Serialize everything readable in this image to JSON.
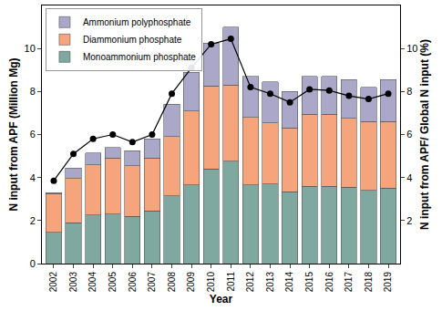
{
  "chart_data": {
    "type": "bar",
    "x_label": "Year",
    "y_label": "N input from APF (Million Mg)",
    "y2_label": "N input from APF/ Global N input (%)",
    "categories": [
      "2002",
      "2003",
      "2004",
      "2005",
      "2006",
      "2007",
      "2008",
      "2009",
      "2010",
      "2011",
      "2012",
      "2013",
      "2014",
      "2015",
      "2016",
      "2017",
      "2018",
      "2019"
    ],
    "stacked": true,
    "legend": "upper left",
    "grid": false,
    "ylim": [
      0,
      12
    ],
    "yticks": [
      0,
      2,
      4,
      6,
      8,
      10
    ],
    "y2lim": [
      0,
      12
    ],
    "y2ticks": [
      2,
      4,
      6,
      8,
      10
    ],
    "series": [
      {
        "name": "Monoammonium phosphate",
        "type": "bar",
        "color": "#7fa9a0",
        "values": [
          1.45,
          1.9,
          2.25,
          2.3,
          2.2,
          2.45,
          3.15,
          3.65,
          4.4,
          4.75,
          3.65,
          3.7,
          3.35,
          3.6,
          3.6,
          3.55,
          3.4,
          3.5
        ]
      },
      {
        "name": "Diammonium phosphate",
        "type": "bar",
        "color": "#f5a47c",
        "values": [
          1.8,
          2.05,
          2.35,
          2.6,
          2.35,
          2.45,
          2.75,
          3.45,
          3.85,
          3.55,
          3.15,
          2.85,
          2.95,
          3.35,
          3.35,
          3.2,
          3.2,
          3.1
        ]
      },
      {
        "name": "Ammonium polyphosphate",
        "type": "bar",
        "color": "#aaa7c9",
        "values": [
          0.05,
          0.5,
          0.55,
          0.5,
          0.7,
          0.9,
          1.5,
          1.8,
          2.0,
          2.7,
          1.9,
          1.9,
          1.7,
          1.75,
          1.75,
          1.8,
          1.6,
          1.95
        ]
      },
      {
        "type": "line",
        "axis": "y2",
        "color": "#000000",
        "marker": "circle",
        "line_style": "solid",
        "values": [
          3.85,
          5.1,
          5.8,
          6.0,
          5.65,
          6.0,
          7.9,
          9.1,
          10.2,
          10.45,
          8.2,
          7.9,
          7.5,
          8.1,
          8.05,
          7.8,
          7.65,
          7.9
        ]
      }
    ]
  }
}
